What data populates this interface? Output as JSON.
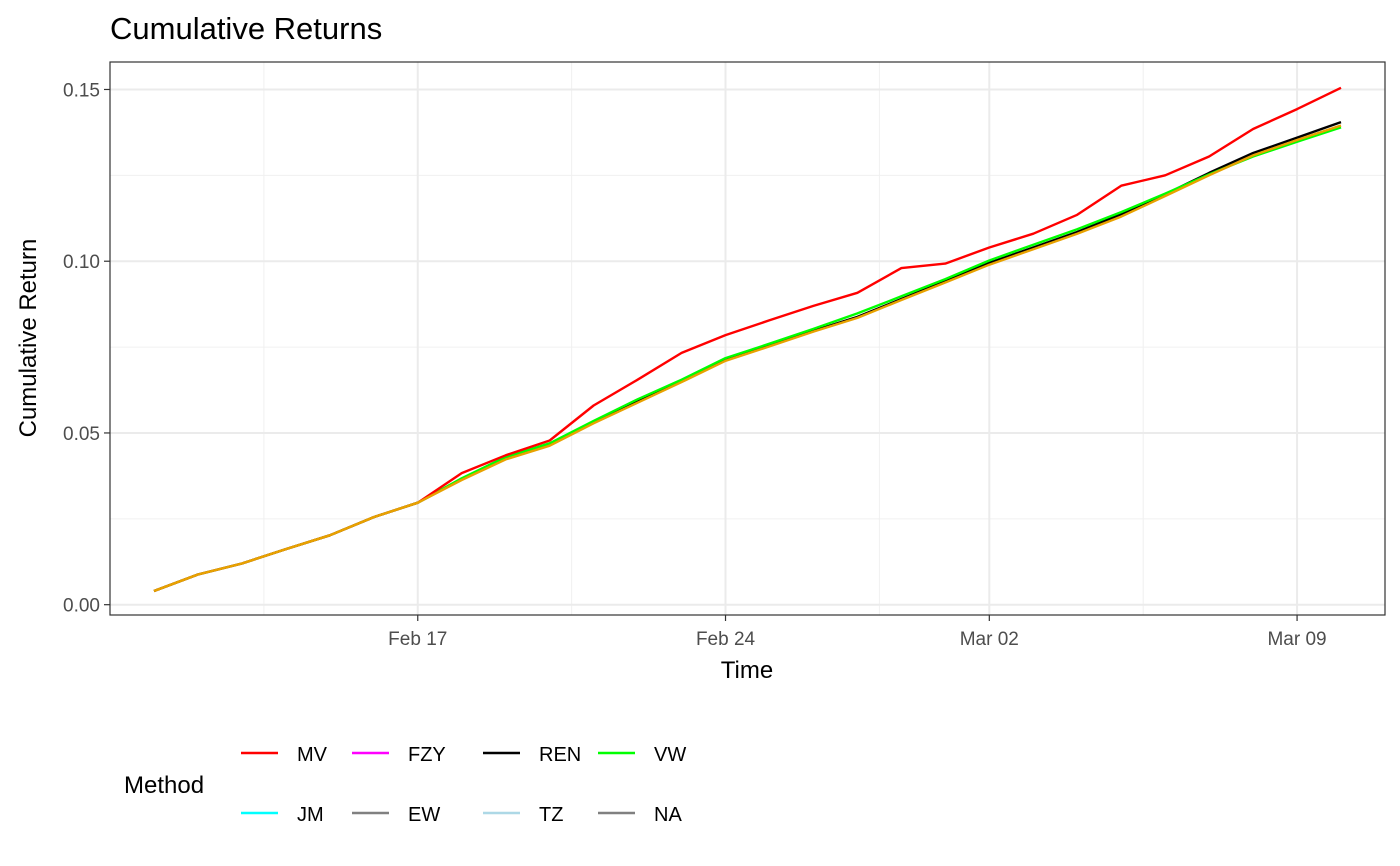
{
  "chart_data": {
    "type": "line",
    "title": "Cumulative Returns",
    "xlabel": "Time",
    "ylabel": "Cumulative Return",
    "xlim": [
      "2025-02-10",
      "2025-03-11"
    ],
    "ylim": [
      -0.003,
      0.158
    ],
    "x_ticks": [
      {
        "date": "2025-02-17",
        "label": "Feb 17"
      },
      {
        "date": "2025-02-24",
        "label": "Feb 24"
      },
      {
        "date": "2025-03-02",
        "label": "Mar 02"
      },
      {
        "date": "2025-03-09",
        "label": "Mar 09"
      }
    ],
    "y_ticks": [
      {
        "value": 0.0,
        "label": "0.00"
      },
      {
        "value": 0.05,
        "label": "0.05"
      },
      {
        "value": 0.1,
        "label": "0.10"
      },
      {
        "value": 0.15,
        "label": "0.15"
      }
    ],
    "grid": true,
    "legend": {
      "title": "Method",
      "position": "bottom",
      "entries": [
        {
          "label": "MV",
          "color": "#ff0000"
        },
        {
          "label": "FZY",
          "color": "#ff00ff"
        },
        {
          "label": "REN",
          "color": "#000000"
        },
        {
          "label": "VW",
          "color": "#00ff00"
        },
        {
          "label": "JM",
          "color": "#00ffff"
        },
        {
          "label": "EW",
          "color": "#808080"
        },
        {
          "label": "TZ",
          "color": "#add8e6"
        },
        {
          "label": "NA",
          "color": "#808080"
        }
      ]
    },
    "x": [
      "2025-02-11",
      "2025-02-12",
      "2025-02-13",
      "2025-02-14",
      "2025-02-15",
      "2025-02-16",
      "2025-02-17",
      "2025-02-18",
      "2025-02-19",
      "2025-02-20",
      "2025-02-21",
      "2025-02-22",
      "2025-02-23",
      "2025-02-24",
      "2025-02-25",
      "2025-02-26",
      "2025-02-27",
      "2025-02-28",
      "2025-03-01",
      "2025-03-02",
      "2025-03-03",
      "2025-03-04",
      "2025-03-05",
      "2025-03-06",
      "2025-03-07",
      "2025-03-08",
      "2025-03-09",
      "2025-03-10"
    ],
    "series": [
      {
        "name": "REN",
        "color": "#000000",
        "values": [
          0.004,
          0.0088,
          0.012,
          0.0162,
          0.0202,
          0.0255,
          0.0297,
          0.0365,
          0.0425,
          0.0465,
          0.0533,
          0.0593,
          0.065,
          0.0713,
          0.0755,
          0.0797,
          0.0838,
          0.089,
          0.0942,
          0.0995,
          0.104,
          0.1085,
          0.1137,
          0.1195,
          0.1257,
          0.1315,
          0.136,
          0.1405
        ]
      },
      {
        "name": "VW",
        "color": "#00ff00",
        "values": [
          0.004,
          0.0088,
          0.012,
          0.0162,
          0.0202,
          0.0255,
          0.0297,
          0.0368,
          0.043,
          0.047,
          0.0535,
          0.0598,
          0.0655,
          0.0718,
          0.076,
          0.0803,
          0.0848,
          0.0898,
          0.0948,
          0.1002,
          0.1048,
          0.1093,
          0.1143,
          0.1197,
          0.1253,
          0.1305,
          0.1348,
          0.139
        ]
      },
      {
        "name": "MV",
        "color": "#ff0000",
        "values": [
          0.004,
          0.0088,
          0.012,
          0.0162,
          0.0202,
          0.0255,
          0.0297,
          0.0383,
          0.0435,
          0.0478,
          0.058,
          0.0655,
          0.0733,
          0.0785,
          0.0828,
          0.087,
          0.0908,
          0.098,
          0.0993,
          0.104,
          0.108,
          0.1135,
          0.122,
          0.125,
          0.1305,
          0.1385,
          0.1443,
          0.1505
        ]
      },
      {
        "name": "",
        "color": "#e8a200",
        "values": [
          0.004,
          0.0088,
          0.012,
          0.0162,
          0.0202,
          0.0255,
          0.0297,
          0.0363,
          0.0423,
          0.0463,
          0.0528,
          0.0588,
          0.0648,
          0.071,
          0.0752,
          0.0795,
          0.0835,
          0.0887,
          0.0938,
          0.099,
          0.1035,
          0.108,
          0.113,
          0.119,
          0.125,
          0.1308,
          0.1353,
          0.1395
        ]
      }
    ]
  }
}
